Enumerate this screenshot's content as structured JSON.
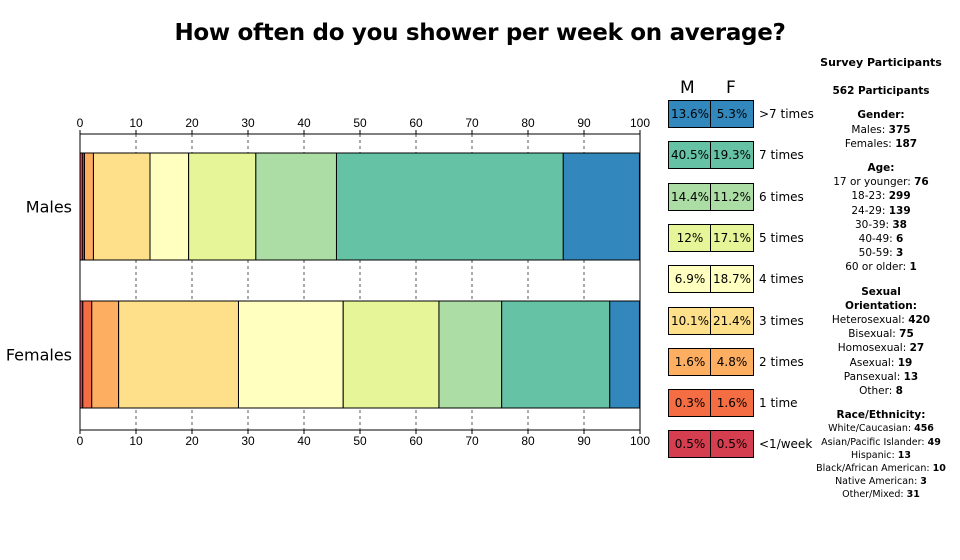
{
  "chart_data": {
    "type": "bar",
    "orientation": "horizontal",
    "stacked": true,
    "title": "How often do you shower per week on average?",
    "xlim": [
      0,
      100
    ],
    "xticks": [
      0,
      10,
      20,
      30,
      40,
      50,
      60,
      70,
      80,
      90,
      100
    ],
    "grid": "vertical dashed",
    "categories": [
      "Males",
      "Females"
    ],
    "series": [
      {
        "name": "<1/week",
        "color": "#d53e4f",
        "values": [
          0.5,
          0.5
        ]
      },
      {
        "name": "1 time",
        "color": "#f46d43",
        "values": [
          0.3,
          1.6
        ]
      },
      {
        "name": "2 times",
        "color": "#fdae61",
        "values": [
          1.6,
          4.8
        ]
      },
      {
        "name": "3 times",
        "color": "#fee08b",
        "values": [
          10.1,
          21.4
        ]
      },
      {
        "name": "4 times",
        "color": "#ffffbf",
        "values": [
          6.9,
          18.7
        ]
      },
      {
        "name": "5 times",
        "color": "#e6f598",
        "values": [
          12,
          17.1
        ]
      },
      {
        "name": "6 times",
        "color": "#abdda4",
        "values": [
          14.4,
          11.2
        ]
      },
      {
        "name": "7 times",
        "color": "#66c2a5",
        "values": [
          40.5,
          19.3
        ]
      },
      {
        "name": ">7 times",
        "color": "#3288bd",
        "values": [
          13.6,
          5.3
        ]
      }
    ]
  },
  "legend_table": {
    "col_m": "M",
    "col_f": "F",
    "rows": [
      {
        "label": ">7 times",
        "m": "13.6%",
        "f": "5.3%",
        "color": "#3288bd"
      },
      {
        "label": "7 times",
        "m": "40.5%",
        "f": "19.3%",
        "color": "#66c2a5"
      },
      {
        "label": "6 times",
        "m": "14.4%",
        "f": "11.2%",
        "color": "#abdda4"
      },
      {
        "label": "5 times",
        "m": "12%",
        "f": "17.1%",
        "color": "#e6f598"
      },
      {
        "label": "4 times",
        "m": "6.9%",
        "f": "18.7%",
        "color": "#ffffbf"
      },
      {
        "label": "3 times",
        "m": "10.1%",
        "f": "21.4%",
        "color": "#fee08b"
      },
      {
        "label": "2 times",
        "m": "1.6%",
        "f": "4.8%",
        "color": "#fdae61"
      },
      {
        "label": "1 time",
        "m": "0.3%",
        "f": "1.6%",
        "color": "#f46d43"
      },
      {
        "label": "<1/week",
        "m": "0.5%",
        "f": "0.5%",
        "color": "#d53e4f"
      }
    ]
  },
  "participants": {
    "heading": "Survey Participants",
    "total": "562 Participants",
    "gender": {
      "heading": "Gender:",
      "items": [
        {
          "label": "Males:",
          "value": "375"
        },
        {
          "label": "Females:",
          "value": "187"
        }
      ]
    },
    "age": {
      "heading": "Age:",
      "items": [
        {
          "label": "17 or younger:",
          "value": "76"
        },
        {
          "label": "18-23:",
          "value": "299"
        },
        {
          "label": "24-29:",
          "value": "139"
        },
        {
          "label": "30-39:",
          "value": "38"
        },
        {
          "label": "40-49:",
          "value": "6"
        },
        {
          "label": "50-59:",
          "value": "3"
        },
        {
          "label": "60 or older:",
          "value": "1"
        }
      ]
    },
    "orientation": {
      "heading": "Sexual Orientation:",
      "items": [
        {
          "label": "Heterosexual:",
          "value": "420"
        },
        {
          "label": "Bisexual:",
          "value": "75"
        },
        {
          "label": "Homosexual:",
          "value": "27"
        },
        {
          "label": "Asexual:",
          "value": "19"
        },
        {
          "label": "Pansexual:",
          "value": "13"
        },
        {
          "label": "Other:",
          "value": "8"
        }
      ]
    },
    "race": {
      "heading": "Race/Ethnicity:",
      "items": [
        {
          "label": "White/Caucasian:",
          "value": "456"
        },
        {
          "label": "Asian/Pacific Islander:",
          "value": "49"
        },
        {
          "label": "Hispanic:",
          "value": "13"
        },
        {
          "label": "Black/African American:",
          "value": "10"
        },
        {
          "label": "Native American:",
          "value": "3"
        },
        {
          "label": "Other/Mixed:",
          "value": "31"
        }
      ]
    }
  }
}
